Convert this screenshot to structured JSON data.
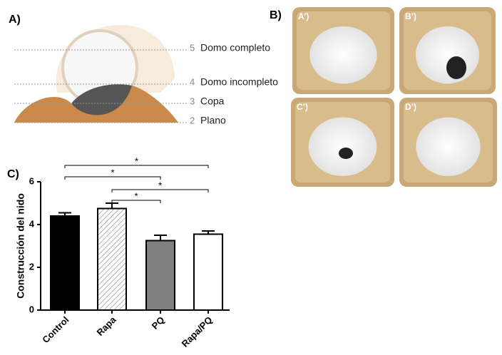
{
  "panel_a": {
    "label": "A)",
    "levels": [
      {
        "number": "5",
        "name": "Domo completo"
      },
      {
        "number": "4",
        "name": "Domo incompleto"
      },
      {
        "number": "3",
        "name": "Copa"
      },
      {
        "number": "2",
        "name": "Plano"
      }
    ]
  },
  "panel_b": {
    "label": "B)",
    "photos": [
      "A’)",
      "B’)",
      "C’)",
      "D’)"
    ]
  },
  "chart_data": {
    "type": "bar",
    "panel_label": "C)",
    "y_label": "Construcción del nido",
    "categories": [
      "Control",
      "Rapa",
      "PQ",
      "Rapa/PQ"
    ],
    "values": [
      4.4,
      4.75,
      3.25,
      3.55
    ],
    "errors": [
      0.15,
      0.25,
      0.25,
      0.15
    ],
    "colors": [
      "#000000",
      "#ffffff",
      "#808080",
      "#ffffff"
    ],
    "hatch": [
      false,
      true,
      false,
      false
    ],
    "ylim": [
      0,
      6
    ],
    "yticks": [
      0,
      2,
      4,
      6
    ],
    "comparisons": [
      {
        "pair": [
          "Control",
          "Rapa/PQ"
        ],
        "label": "*"
      },
      {
        "pair": [
          "Control",
          "PQ"
        ],
        "label": "*"
      },
      {
        "pair": [
          "Rapa",
          "Rapa/PQ"
        ],
        "label": "*"
      },
      {
        "pair": [
          "Rapa",
          "PQ"
        ],
        "label": "*"
      }
    ]
  }
}
